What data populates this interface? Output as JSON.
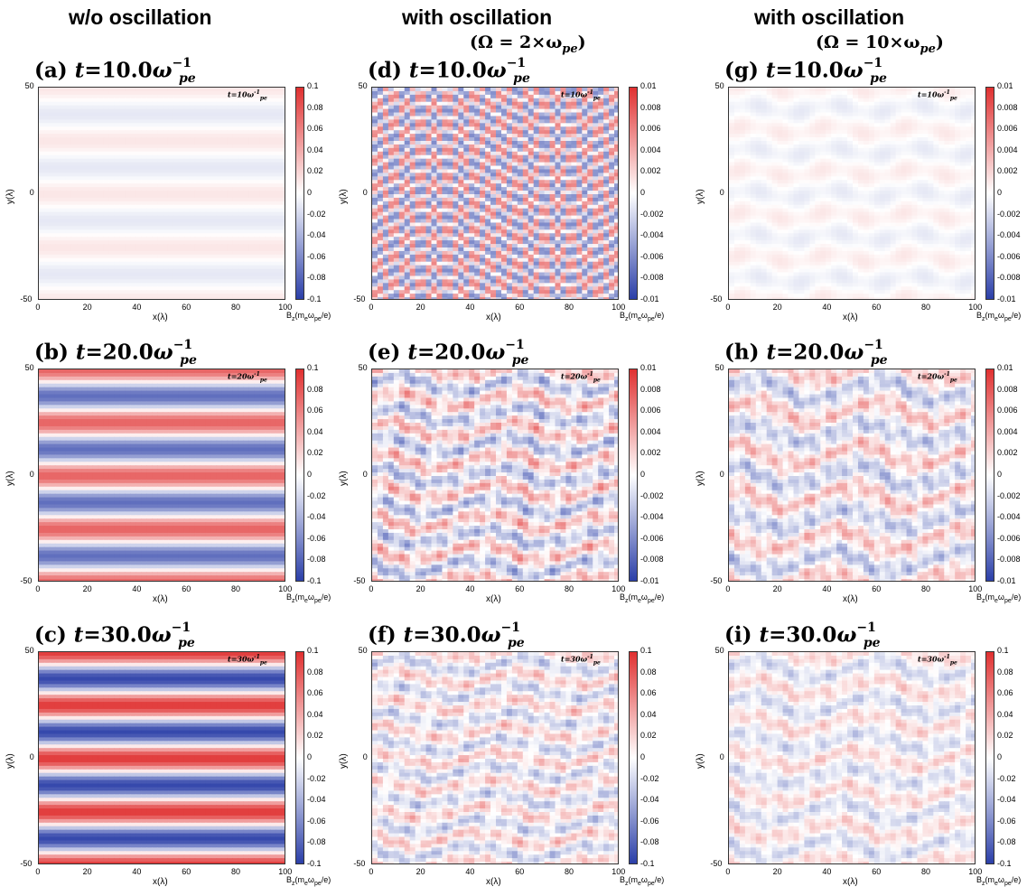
{
  "columns": [
    {
      "header": "w/o oscillation",
      "sub": ""
    },
    {
      "header": "with oscillation",
      "sub": "(Ω = 2×ω"
    },
    {
      "header": "with oscillation",
      "sub": "(Ω = 10×ω"
    }
  ],
  "sub_suffix": "pe",
  "sub_close": ")",
  "title_prefix_t": "t",
  "title_omega": "ω",
  "title_sup": "−1",
  "title_sub": "pe",
  "inset_t": "t=",
  "inset_omega": "ω",
  "inset_sup": "-1",
  "inset_sub": "pe",
  "xlabel": "x(λ)",
  "ylabel": "y(λ)",
  "cbar_label": "B",
  "cbar_label_rest": "(m",
  "cbar_label_e": "e",
  "cbar_label_w": "ω",
  "cbar_label_pe": "pe",
  "cbar_label_end": "/e)",
  "chart_data": [
    {
      "type": "heatmap",
      "label": "(a)",
      "time": "10.0",
      "inset_time": "10",
      "column": 0,
      "xlim": [
        0,
        100
      ],
      "ylim": [
        -50,
        50
      ],
      "xticks": [
        "0",
        "20",
        "40",
        "60",
        "80",
        "100"
      ],
      "yticks": [
        "50",
        "0",
        "-50"
      ],
      "colorbar_ticks": [
        "0.1",
        "0.08",
        "0.06",
        "0.04",
        "0.02",
        "0",
        "-0.02",
        "-0.04",
        "-0.06",
        "-0.08",
        "-0.1"
      ],
      "clim": [
        -0.1,
        0.1
      ],
      "pattern": "bands",
      "stripes": 4,
      "amplitude": 0.012
    },
    {
      "type": "heatmap",
      "label": "(b)",
      "time": "20.0",
      "inset_time": "20",
      "column": 0,
      "xlim": [
        0,
        100
      ],
      "ylim": [
        -50,
        50
      ],
      "xticks": [
        "0",
        "20",
        "40",
        "60",
        "80",
        "100"
      ],
      "yticks": [
        "50",
        "0",
        "-50"
      ],
      "colorbar_ticks": [
        "0.1",
        "0.08",
        "0.06",
        "0.04",
        "0.02",
        "0",
        "-0.02",
        "-0.04",
        "-0.06",
        "-0.08",
        "-0.1"
      ],
      "clim": [
        -0.1,
        0.1
      ],
      "pattern": "bands",
      "stripes": 4,
      "amplitude": 0.075
    },
    {
      "type": "heatmap",
      "label": "(c)",
      "time": "30.0",
      "inset_time": "30",
      "column": 0,
      "xlim": [
        0,
        100
      ],
      "ylim": [
        -50,
        50
      ],
      "xticks": [
        "0",
        "20",
        "40",
        "60",
        "80",
        "100"
      ],
      "yticks": [
        "50",
        "0",
        "-50"
      ],
      "colorbar_ticks": [
        "0.1",
        "0.08",
        "0.06",
        "0.04",
        "0.02",
        "0",
        "-0.02",
        "-0.04",
        "-0.06",
        "-0.08",
        "-0.1"
      ],
      "clim": [
        -0.1,
        0.1
      ],
      "pattern": "bands",
      "stripes": 4,
      "amplitude": 0.095
    },
    {
      "type": "heatmap",
      "label": "(d)",
      "time": "10.0",
      "inset_time": "10",
      "column": 1,
      "xlim": [
        0,
        100
      ],
      "ylim": [
        -50,
        50
      ],
      "xticks": [
        "0",
        "20",
        "40",
        "60",
        "80",
        "100"
      ],
      "yticks": [
        "50",
        "0",
        "-50"
      ],
      "colorbar_ticks": [
        "0.01",
        "0.008",
        "0.006",
        "0.004",
        "0.002",
        "0",
        "-0.002",
        "-0.004",
        "-0.006",
        "-0.008",
        "-0.01"
      ],
      "clim": [
        -0.01,
        0.01
      ],
      "pattern": "waves",
      "stripes": 8,
      "amplitude": 0.006
    },
    {
      "type": "heatmap",
      "label": "(e)",
      "time": "20.0",
      "inset_time": "20",
      "column": 1,
      "xlim": [
        0,
        100
      ],
      "ylim": [
        -50,
        50
      ],
      "xticks": [
        "0",
        "20",
        "40",
        "60",
        "80",
        "100"
      ],
      "yticks": [
        "50",
        "0",
        "-50"
      ],
      "colorbar_ticks": [
        "0.01",
        "0.008",
        "0.006",
        "0.004",
        "0.002",
        "0",
        "-0.002",
        "-0.004",
        "-0.006",
        "-0.008",
        "-0.01"
      ],
      "clim": [
        -0.01,
        0.01
      ],
      "pattern": "turbulent",
      "stripes": 7,
      "amplitude": 0.006
    },
    {
      "type": "heatmap",
      "label": "(f)",
      "time": "30.0",
      "inset_time": "30",
      "column": 1,
      "xlim": [
        0,
        100
      ],
      "ylim": [
        -50,
        50
      ],
      "xticks": [
        "0",
        "20",
        "40",
        "60",
        "80",
        "100"
      ],
      "yticks": [
        "50",
        "0",
        "-50"
      ],
      "colorbar_ticks": [
        "0.1",
        "0.08",
        "0.06",
        "0.04",
        "0.02",
        "0",
        "-0.02",
        "-0.04",
        "-0.06",
        "-0.08",
        "-0.1"
      ],
      "clim": [
        -0.1,
        0.1
      ],
      "pattern": "turbulent",
      "stripes": 8,
      "amplitude": 0.045
    },
    {
      "type": "heatmap",
      "label": "(g)",
      "time": "10.0",
      "inset_time": "10",
      "column": 2,
      "xlim": [
        0,
        100
      ],
      "ylim": [
        -50,
        50
      ],
      "xticks": [
        "0",
        "20",
        "40",
        "60",
        "80",
        "100"
      ],
      "yticks": [
        "50",
        "0",
        "-50"
      ],
      "colorbar_ticks": [
        "0.01",
        "0.008",
        "0.006",
        "0.004",
        "0.002",
        "0",
        "-0.002",
        "-0.004",
        "-0.006",
        "-0.008",
        "-0.01"
      ],
      "clim": [
        -0.01,
        0.01
      ],
      "pattern": "faint",
      "stripes": 5,
      "amplitude": 0.0012
    },
    {
      "type": "heatmap",
      "label": "(h)",
      "time": "20.0",
      "inset_time": "20",
      "column": 2,
      "xlim": [
        0,
        100
      ],
      "ylim": [
        -50,
        50
      ],
      "xticks": [
        "0",
        "20",
        "40",
        "60",
        "80",
        "100"
      ],
      "yticks": [
        "50",
        "0",
        "-50"
      ],
      "colorbar_ticks": [
        "0.01",
        "0.008",
        "0.006",
        "0.004",
        "0.002",
        "0",
        "-0.002",
        "-0.004",
        "-0.006",
        "-0.008",
        "-0.01"
      ],
      "clim": [
        -0.01,
        0.01
      ],
      "pattern": "turbulent",
      "stripes": 5,
      "amplitude": 0.005
    },
    {
      "type": "heatmap",
      "label": "(i)",
      "time": "30.0",
      "inset_time": "30",
      "column": 2,
      "xlim": [
        0,
        100
      ],
      "ylim": [
        -50,
        50
      ],
      "xticks": [
        "0",
        "20",
        "40",
        "60",
        "80",
        "100"
      ],
      "yticks": [
        "50",
        "0",
        "-50"
      ],
      "colorbar_ticks": [
        "0.1",
        "0.08",
        "0.06",
        "0.04",
        "0.02",
        "0",
        "-0.02",
        "-0.04",
        "-0.06",
        "-0.08",
        "-0.1"
      ],
      "clim": [
        -0.1,
        0.1
      ],
      "pattern": "turbulent",
      "stripes": 6,
      "amplitude": 0.035
    }
  ],
  "colors": {
    "positive": "#e03030",
    "neutral": "#ffffff",
    "negative": "#2b3fa8"
  }
}
